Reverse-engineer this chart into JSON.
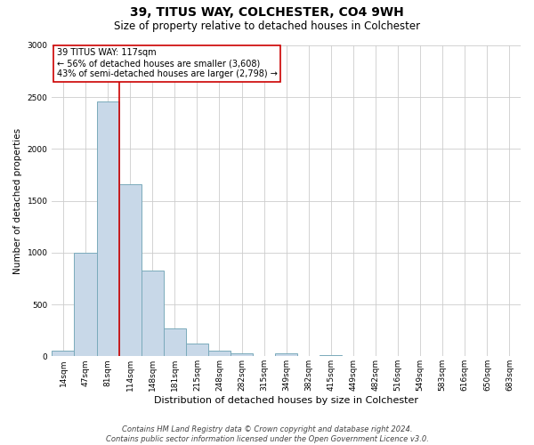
{
  "title": "39, TITUS WAY, COLCHESTER, CO4 9WH",
  "subtitle": "Size of property relative to detached houses in Colchester",
  "xlabel": "Distribution of detached houses by size in Colchester",
  "ylabel": "Number of detached properties",
  "bin_labels": [
    "14sqm",
    "47sqm",
    "81sqm",
    "114sqm",
    "148sqm",
    "181sqm",
    "215sqm",
    "248sqm",
    "282sqm",
    "315sqm",
    "349sqm",
    "382sqm",
    "415sqm",
    "449sqm",
    "482sqm",
    "516sqm",
    "549sqm",
    "583sqm",
    "616sqm",
    "650sqm",
    "683sqm"
  ],
  "bar_heights": [
    55,
    1000,
    2460,
    1660,
    830,
    270,
    125,
    55,
    30,
    0,
    25,
    0,
    10,
    0,
    0,
    0,
    0,
    0,
    0,
    0,
    0
  ],
  "bar_color": "#c8d8e8",
  "bar_edge_color": "#7aaabb",
  "bar_width": 1.0,
  "vline_color": "#cc0000",
  "vline_x_index": 3,
  "annotation_line1": "39 TITUS WAY: 117sqm",
  "annotation_line2": "← 56% of detached houses are smaller (3,608)",
  "annotation_line3": "43% of semi-detached houses are larger (2,798) →",
  "annotation_box_color": "#ffffff",
  "annotation_box_edge": "#cc0000",
  "ylim": [
    0,
    3000
  ],
  "yticks": [
    0,
    500,
    1000,
    1500,
    2000,
    2500,
    3000
  ],
  "footer_line1": "Contains HM Land Registry data © Crown copyright and database right 2024.",
  "footer_line2": "Contains public sector information licensed under the Open Government Licence v3.0.",
  "background_color": "#ffffff",
  "grid_color": "#cccccc",
  "title_fontsize": 10,
  "subtitle_fontsize": 8.5,
  "xlabel_fontsize": 8,
  "ylabel_fontsize": 7.5,
  "tick_fontsize": 6.5,
  "annotation_fontsize": 7,
  "footer_fontsize": 6
}
